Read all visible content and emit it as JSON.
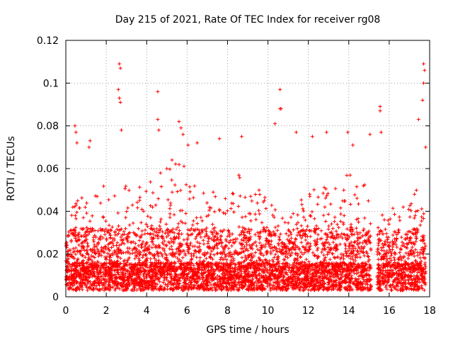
{
  "chart_data": {
    "type": "scatter",
    "title": "Day 215 of 2021, Rate Of TEC Index for receiver rg08",
    "xlabel": "GPS time / hours",
    "ylabel": "ROTI / TECUs",
    "xlim": [
      0,
      18
    ],
    "ylim": [
      0,
      0.12
    ],
    "x_ticks": [
      "0",
      "2",
      "4",
      "6",
      "8",
      "10",
      "12",
      "14",
      "16",
      "18"
    ],
    "x_tick_values": [
      0,
      2,
      4,
      6,
      8,
      10,
      12,
      14,
      16,
      18
    ],
    "y_ticks": [
      "0",
      "0.02",
      "0.04",
      "0.06",
      "0.08",
      "0.1",
      "0.12"
    ],
    "y_tick_values": [
      0,
      0.02,
      0.04,
      0.06,
      0.08,
      0.1,
      0.12
    ],
    "grid": true,
    "marker": "plus",
    "series_color": "#ff0000",
    "data_coverage_hours": [
      0,
      17.8
    ],
    "data_gap_hours": [
      15.1,
      15.4
    ],
    "spikes": [
      {
        "x": 0.45,
        "y": 0.08
      },
      {
        "x": 0.5,
        "y": 0.077
      },
      {
        "x": 0.55,
        "y": 0.072
      },
      {
        "x": 1.15,
        "y": 0.07
      },
      {
        "x": 1.2,
        "y": 0.073
      },
      {
        "x": 2.65,
        "y": 0.109
      },
      {
        "x": 2.7,
        "y": 0.107
      },
      {
        "x": 2.65,
        "y": 0.093
      },
      {
        "x": 2.7,
        "y": 0.091
      },
      {
        "x": 2.6,
        "y": 0.097
      },
      {
        "x": 2.75,
        "y": 0.078
      },
      {
        "x": 4.55,
        "y": 0.096
      },
      {
        "x": 4.55,
        "y": 0.083
      },
      {
        "x": 4.6,
        "y": 0.078
      },
      {
        "x": 5.6,
        "y": 0.082
      },
      {
        "x": 5.7,
        "y": 0.079
      },
      {
        "x": 5.8,
        "y": 0.076
      },
      {
        "x": 6.05,
        "y": 0.071
      },
      {
        "x": 6.5,
        "y": 0.072
      },
      {
        "x": 7.6,
        "y": 0.074
      },
      {
        "x": 8.7,
        "y": 0.075
      },
      {
        "x": 10.35,
        "y": 0.081
      },
      {
        "x": 10.6,
        "y": 0.097
      },
      {
        "x": 10.6,
        "y": 0.088
      },
      {
        "x": 10.65,
        "y": 0.088
      },
      {
        "x": 11.4,
        "y": 0.077
      },
      {
        "x": 12.2,
        "y": 0.075
      },
      {
        "x": 12.9,
        "y": 0.077
      },
      {
        "x": 13.95,
        "y": 0.077
      },
      {
        "x": 14.2,
        "y": 0.071
      },
      {
        "x": 15.05,
        "y": 0.076
      },
      {
        "x": 15.55,
        "y": 0.089
      },
      {
        "x": 15.55,
        "y": 0.087
      },
      {
        "x": 15.6,
        "y": 0.077
      },
      {
        "x": 17.45,
        "y": 0.083
      },
      {
        "x": 17.7,
        "y": 0.109
      },
      {
        "x": 17.75,
        "y": 0.106
      },
      {
        "x": 17.7,
        "y": 0.1
      },
      {
        "x": 17.65,
        "y": 0.092
      },
      {
        "x": 17.8,
        "y": 0.07
      }
    ],
    "activity_profile": [
      {
        "x": 0.0,
        "peak": 0.028
      },
      {
        "x": 0.5,
        "peak": 0.05
      },
      {
        "x": 1.0,
        "peak": 0.045
      },
      {
        "x": 1.5,
        "peak": 0.05
      },
      {
        "x": 2.0,
        "peak": 0.06
      },
      {
        "x": 2.5,
        "peak": 0.045
      },
      {
        "x": 3.0,
        "peak": 0.055
      },
      {
        "x": 3.5,
        "peak": 0.05
      },
      {
        "x": 4.0,
        "peak": 0.055
      },
      {
        "x": 4.5,
        "peak": 0.06
      },
      {
        "x": 5.0,
        "peak": 0.065
      },
      {
        "x": 5.5,
        "peak": 0.065
      },
      {
        "x": 6.0,
        "peak": 0.06
      },
      {
        "x": 6.5,
        "peak": 0.05
      },
      {
        "x": 7.0,
        "peak": 0.055
      },
      {
        "x": 7.5,
        "peak": 0.05
      },
      {
        "x": 8.0,
        "peak": 0.045
      },
      {
        "x": 8.5,
        "peak": 0.06
      },
      {
        "x": 9.0,
        "peak": 0.05
      },
      {
        "x": 9.5,
        "peak": 0.055
      },
      {
        "x": 10.0,
        "peak": 0.045
      },
      {
        "x": 10.5,
        "peak": 0.04
      },
      {
        "x": 11.0,
        "peak": 0.035
      },
      {
        "x": 11.5,
        "peak": 0.045
      },
      {
        "x": 12.0,
        "peak": 0.05
      },
      {
        "x": 12.5,
        "peak": 0.055
      },
      {
        "x": 13.0,
        "peak": 0.05
      },
      {
        "x": 13.5,
        "peak": 0.055
      },
      {
        "x": 14.0,
        "peak": 0.06
      },
      {
        "x": 14.5,
        "peak": 0.05
      },
      {
        "x": 15.0,
        "peak": 0.055
      },
      {
        "x": 15.5,
        "peak": 0.04
      },
      {
        "x": 16.0,
        "peak": 0.04
      },
      {
        "x": 16.5,
        "peak": 0.045
      },
      {
        "x": 17.0,
        "peak": 0.05
      },
      {
        "x": 17.5,
        "peak": 0.055
      },
      {
        "x": 17.8,
        "peak": 0.05
      }
    ]
  }
}
